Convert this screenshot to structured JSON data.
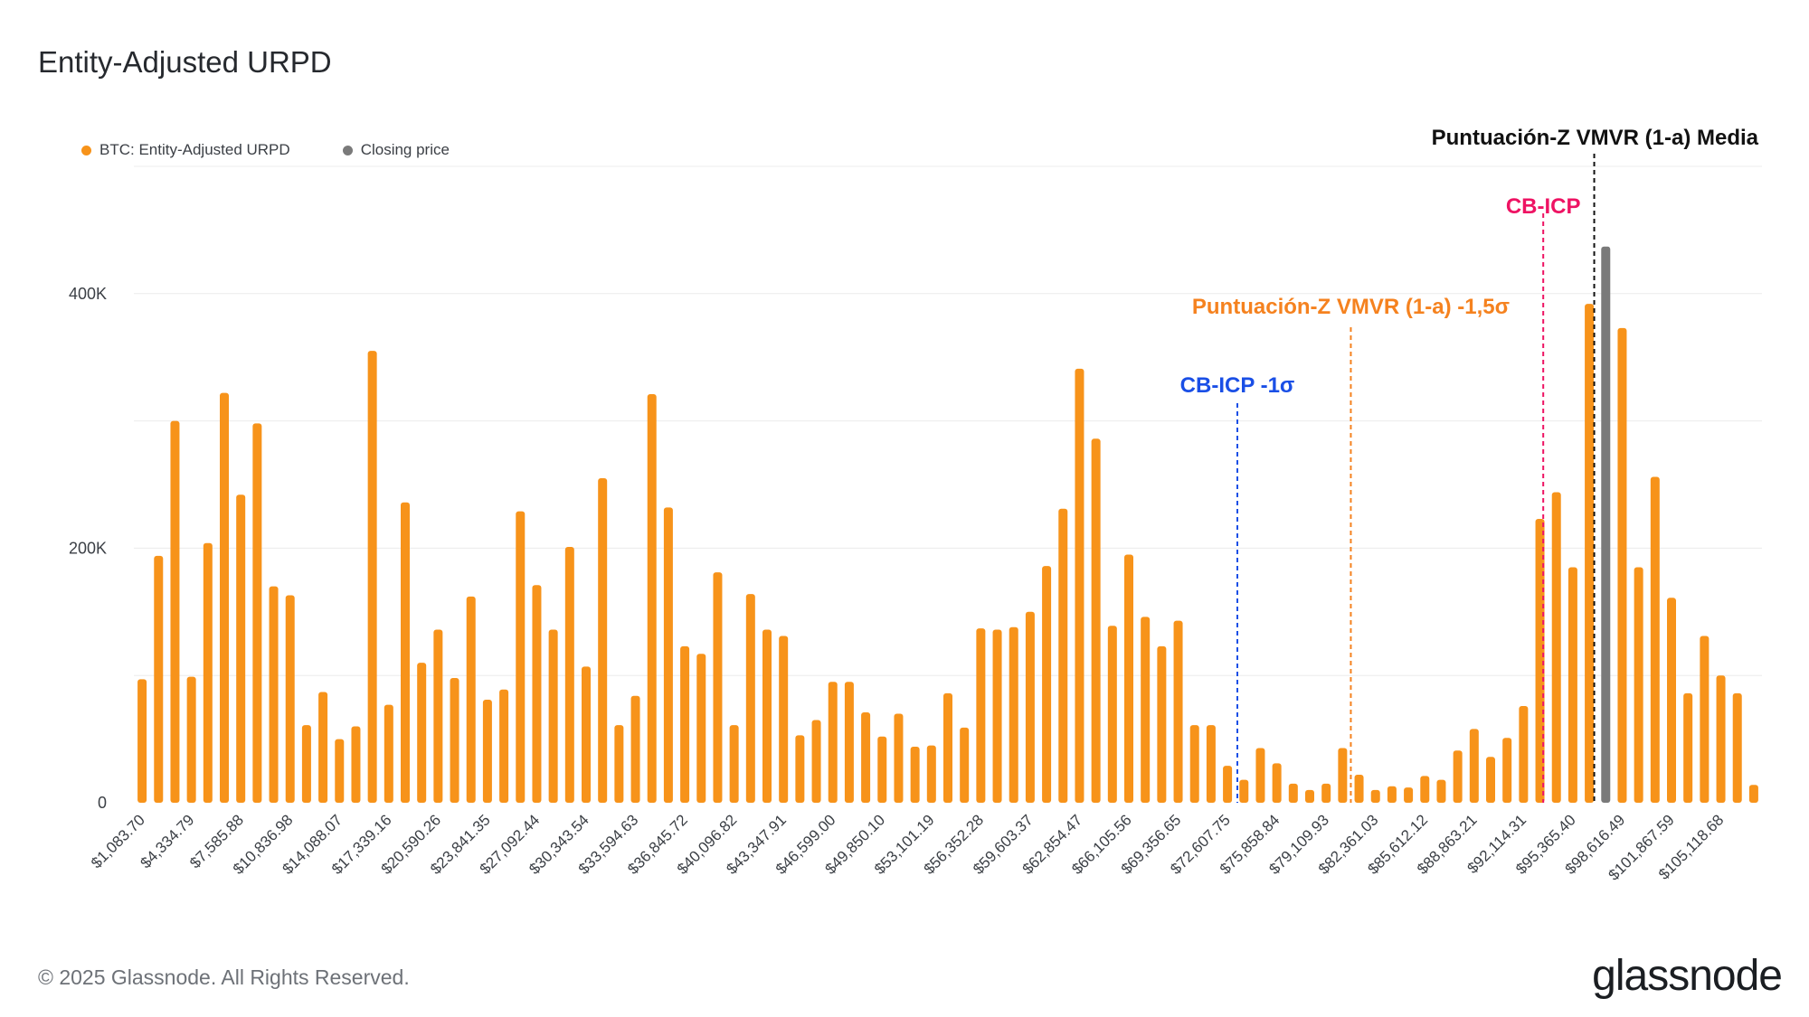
{
  "title": "Entity-Adjusted URPD",
  "legend": [
    {
      "label": "BTC: Entity-Adjusted URPD",
      "color": "#f7931a"
    },
    {
      "label": "Closing price",
      "color": "#7a7a7a"
    }
  ],
  "footer": "© 2025 Glassnode. All Rights Reserved.",
  "logo": "glassnode",
  "chart_data": {
    "type": "bar",
    "title": "Entity-Adjusted URPD",
    "xlabel": "",
    "ylabel": "",
    "ylim": [
      0,
      500000
    ],
    "yticks": [
      0,
      200000,
      400000
    ],
    "ytick_labels": [
      "0",
      "200K",
      "400K"
    ],
    "grid": true,
    "legend_position": "top-left",
    "bar_color": "#f7931a",
    "highlight_color": "#7a7a7a",
    "highlight_index": 89,
    "tick_labels": [
      "$1,083.70",
      "$4,334.79",
      "$7,585.88",
      "$10,836.98",
      "$14,088.07",
      "$17,339.16",
      "$20,590.26",
      "$23,841.35",
      "$27,092.44",
      "$30,343.54",
      "$33,594.63",
      "$36,845.72",
      "$40,096.82",
      "$43,347.91",
      "$46,599.00",
      "$49,850.10",
      "$53,101.19",
      "$56,352.28",
      "$59,603.37",
      "$62,854.47",
      "$66,105.56",
      "$69,356.65",
      "$72,607.75",
      "$75,858.84",
      "$79,109.93",
      "$82,361.03",
      "$85,612.12",
      "$88,863.21",
      "$92,114.31",
      "$95,365.40",
      "$98,616.49",
      "$101,867.59",
      "$105,118.68"
    ],
    "series": [
      {
        "name": "BTC: Entity-Adjusted URPD",
        "values": [
          97000,
          194000,
          300000,
          99000,
          204000,
          322000,
          242000,
          298000,
          170000,
          163000,
          61000,
          87000,
          50000,
          60000,
          355000,
          77000,
          236000,
          110000,
          136000,
          98000,
          162000,
          81000,
          89000,
          229000,
          171000,
          136000,
          201000,
          107000,
          255000,
          61000,
          84000,
          321000,
          232000,
          123000,
          117000,
          181000,
          61000,
          164000,
          136000,
          131000,
          53000,
          65000,
          95000,
          95000,
          71000,
          52000,
          70000,
          44000,
          45000,
          86000,
          59000,
          137000,
          136000,
          138000,
          150000,
          186000,
          231000,
          341000,
          286000,
          139000,
          195000,
          146000,
          123000,
          143000,
          61000,
          61000,
          29000,
          18000,
          43000,
          31000,
          15000,
          10000,
          15000,
          43000,
          22000,
          10000,
          13000,
          12000,
          21000,
          18000,
          41000,
          58000,
          36000,
          51000,
          76000,
          223000,
          244000,
          185000,
          392000,
          437000,
          373000,
          185000,
          256000,
          161000,
          86000,
          131000,
          100000,
          86000,
          14000
        ]
      }
    ],
    "annotations": [
      {
        "label": "CB-ICP -1σ",
        "color": "#1a4fe6",
        "x": 66.6
      },
      {
        "label": "Puntuación-Z VMVR (1-a) -1,5σ",
        "color": "#f5821f",
        "x": 73.5
      },
      {
        "label": "CB-ICP",
        "color": "#ee1363",
        "x": 85.2
      },
      {
        "label": "Puntuación-Z VMVR (1-a) Media",
        "color": "#111111",
        "x": 88.3
      }
    ]
  }
}
